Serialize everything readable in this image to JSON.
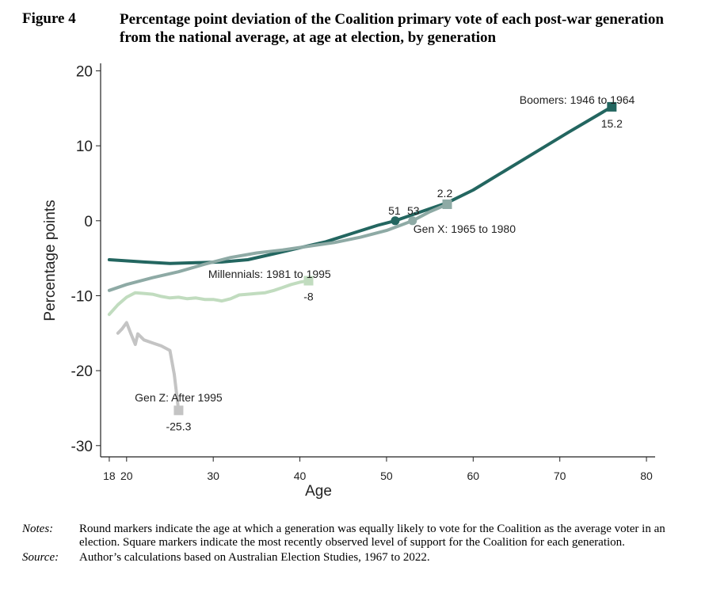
{
  "figure": {
    "label": "Figure 4",
    "title": "Percentage point deviation of the Coalition primary vote of each post-war generation from the national average, at age at election, by generation"
  },
  "notes": {
    "notes_key": "Notes:",
    "notes_text": "Round markers indicate the age at which a generation was equally likely to vote for the Coalition as the average voter in an election. Square markers indicate the most recently observed level of support for the Coalition for each generation.",
    "source_key": "Source:",
    "source_text": "Author’s calculations based on Australian Election Studies, 1967 to 2022."
  },
  "chart_data": {
    "type": "line",
    "xlabel": "Age",
    "ylabel": "Percentage points",
    "xlim": [
      17,
      81
    ],
    "ylim": [
      -31.5,
      21
    ],
    "x_ticks": [
      18,
      20,
      30,
      40,
      50,
      60,
      70,
      80
    ],
    "y_ticks": [
      20,
      10,
      0,
      -10,
      -20,
      -30
    ],
    "grid": false,
    "series": [
      {
        "name": "Boomers: 1946 to 1964",
        "color": "#236660",
        "width": 4,
        "points": [
          [
            18,
            -5.2
          ],
          [
            22,
            -5.5
          ],
          [
            25,
            -5.7
          ],
          [
            28,
            -5.6
          ],
          [
            31,
            -5.5
          ],
          [
            34,
            -5.2
          ],
          [
            37,
            -4.4
          ],
          [
            40,
            -3.6
          ],
          [
            43,
            -2.8
          ],
          [
            46,
            -1.7
          ],
          [
            49,
            -0.6
          ],
          [
            51,
            0
          ],
          [
            54,
            1.2
          ],
          [
            57,
            2.4
          ],
          [
            60,
            4.1
          ],
          [
            63,
            6.2
          ],
          [
            67,
            9
          ],
          [
            71,
            11.8
          ],
          [
            76,
            15.2
          ]
        ],
        "round_marker": [
          51,
          0
        ],
        "square_marker": [
          76,
          15.2
        ],
        "end_value_label": "15.2",
        "round_label": "51",
        "label_anchor": [
          72,
          15.2
        ]
      },
      {
        "name": "Gen X: 1965 to 1980",
        "color": "#8eaaa5",
        "width": 4,
        "points": [
          [
            18,
            -9.3
          ],
          [
            20,
            -8.5
          ],
          [
            23,
            -7.6
          ],
          [
            26,
            -6.8
          ],
          [
            29,
            -5.8
          ],
          [
            32,
            -4.9
          ],
          [
            35,
            -4.3
          ],
          [
            38,
            -3.9
          ],
          [
            41,
            -3.4
          ],
          [
            44,
            -2.9
          ],
          [
            47,
            -2.2
          ],
          [
            50,
            -1.3
          ],
          [
            53,
            0
          ],
          [
            55,
            1.2
          ],
          [
            57,
            2.2
          ]
        ],
        "round_marker": [
          53,
          0
        ],
        "square_marker": [
          57,
          2.2
        ],
        "end_value_label": "2.2",
        "round_label": "53",
        "label_anchor": [
          59,
          -1.1
        ]
      },
      {
        "name": "Millennials: 1981 to 1995",
        "color": "#c1dcbf",
        "width": 4,
        "points": [
          [
            18,
            -12.5
          ],
          [
            19,
            -11.2
          ],
          [
            20,
            -10.2
          ],
          [
            21,
            -9.6
          ],
          [
            22,
            -9.7
          ],
          [
            23,
            -9.8
          ],
          [
            24,
            -10.1
          ],
          [
            25,
            -10.3
          ],
          [
            26,
            -10.2
          ],
          [
            27,
            -10.4
          ],
          [
            28,
            -10.3
          ],
          [
            29,
            -10.5
          ],
          [
            30,
            -10.5
          ],
          [
            31,
            -10.7
          ],
          [
            32,
            -10.4
          ],
          [
            33,
            -9.9
          ],
          [
            34,
            -9.8
          ],
          [
            35,
            -9.7
          ],
          [
            36,
            -9.6
          ],
          [
            37,
            -9.3
          ],
          [
            38,
            -8.9
          ],
          [
            39,
            -8.5
          ],
          [
            40,
            -8.2
          ],
          [
            41,
            -8
          ]
        ],
        "square_marker": [
          41,
          -8
        ],
        "end_value_label": "-8",
        "label_anchor": [
          36.5,
          -7.1
        ]
      },
      {
        "name": "Gen Z: After 1995",
        "color": "#c4c4c4",
        "width": 4,
        "points": [
          [
            19,
            -15
          ],
          [
            19.5,
            -14.4
          ],
          [
            20,
            -13.6
          ],
          [
            20.5,
            -15.1
          ],
          [
            21,
            -16.5
          ],
          [
            21.3,
            -15.1
          ],
          [
            22,
            -15.9
          ],
          [
            23,
            -16.3
          ],
          [
            24,
            -16.7
          ],
          [
            25,
            -17.3
          ],
          [
            25.5,
            -20.5
          ],
          [
            26,
            -25.3
          ]
        ],
        "square_marker": [
          26,
          -25.3
        ],
        "end_value_label": "-25.3",
        "label_anchor": [
          26,
          -23.6
        ]
      }
    ]
  }
}
